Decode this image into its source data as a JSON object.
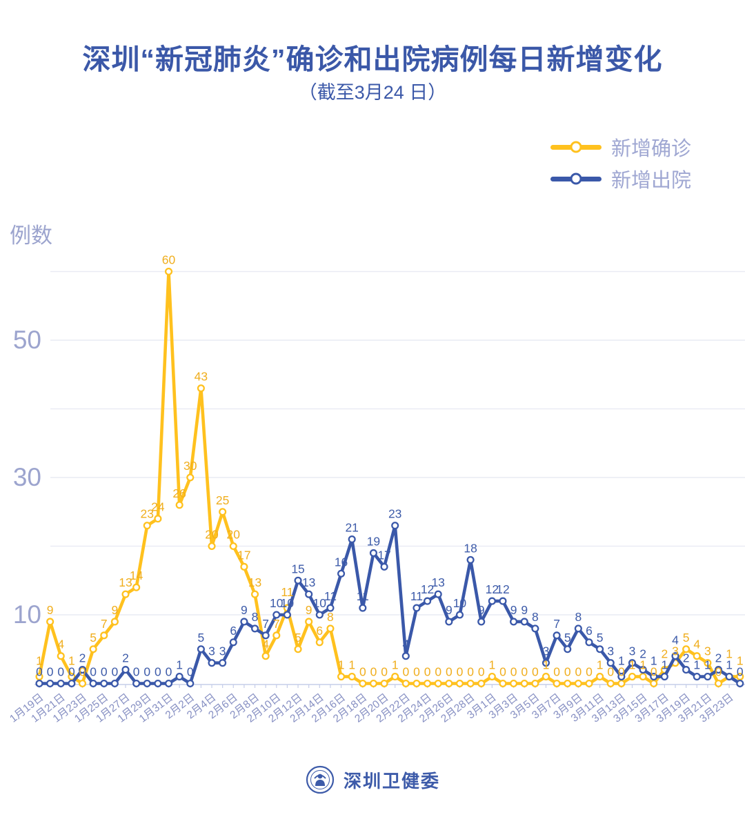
{
  "title": "深圳“新冠肺炎”确诊和出院病例每日新增变化",
  "subtitle": "（截至3月24 日）",
  "legend": {
    "items": [
      {
        "label": "新增确诊",
        "color": "#ffc11e"
      },
      {
        "label": "新增出院",
        "color": "#3a58a9"
      }
    ]
  },
  "y_axis": {
    "unit_label": "例数",
    "ticks": [
      10,
      30,
      50
    ]
  },
  "footer": {
    "org_name": "深圳卫健委",
    "logo": "round-seal-logo"
  },
  "chart_data": {
    "type": "line",
    "title": "深圳“新冠肺炎”确诊和出院病例每日新增变化",
    "subtitle": "（截至3月24 日）",
    "x_range": "1月19日 — 3月24日 (66 daily points, tick label every 2nd day)",
    "x_tick_labels": [
      "1月19日",
      "1月21日",
      "1月23日",
      "1月25日",
      "1月27日",
      "1月29日",
      "1月31日",
      "2月2日",
      "2月4日",
      "2月6日",
      "2月8日",
      "2月10日",
      "2月12日",
      "2月14日",
      "2月16日",
      "2月18日",
      "2月20日",
      "2月22日",
      "2月24日",
      "2月26日",
      "2月28日",
      "3月1日",
      "3月3日",
      "3月5日",
      "3月7日",
      "3月9日",
      "3月11日",
      "3月13日",
      "3月15日",
      "3月17日",
      "3月19日",
      "3月21日",
      "3月23日"
    ],
    "ylabel": "例数",
    "ylim": [
      0,
      62
    ],
    "y_tick_labels": [
      10,
      30,
      50
    ],
    "gridlines": [
      10,
      20,
      30,
      40,
      50,
      60
    ],
    "grid": true,
    "legend_position": "top-right",
    "point_labels_shown": true,
    "series": [
      {
        "name": "新增确诊",
        "color": "#ffc11e",
        "label_color": "#f0ae1e",
        "values": [
          1,
          9,
          4,
          1,
          0,
          5,
          7,
          9,
          13,
          14,
          23,
          24,
          60,
          26,
          30,
          43,
          20,
          25,
          20,
          17,
          13,
          4,
          7,
          11,
          5,
          9,
          6,
          8,
          1,
          1,
          0,
          0,
          0,
          1,
          0,
          0,
          0,
          0,
          0,
          0,
          0,
          0,
          1,
          0,
          0,
          0,
          0,
          1,
          0,
          0,
          0,
          0,
          1,
          0,
          0,
          1,
          1,
          0,
          2,
          3,
          5,
          4,
          3,
          0,
          1,
          1
        ]
      },
      {
        "name": "新增出院",
        "color": "#3a58a9",
        "label_color": "#3d5ba9",
        "values": [
          0,
          0,
          0,
          0,
          2,
          0,
          0,
          0,
          2,
          0,
          0,
          0,
          0,
          1,
          0,
          5,
          3,
          3,
          6,
          9,
          8,
          7,
          10,
          10,
          15,
          13,
          10,
          11,
          16,
          21,
          11,
          19,
          17,
          23,
          4,
          11,
          12,
          13,
          9,
          10,
          18,
          9,
          12,
          12,
          9,
          9,
          8,
          3,
          7,
          5,
          8,
          6,
          5,
          3,
          1,
          3,
          2,
          1,
          1,
          4,
          2,
          1,
          1,
          2,
          1,
          0
        ]
      }
    ]
  },
  "colors": {
    "title": "#3b58a8",
    "axis_text": "#9ca4ce",
    "x_tick_text": "#8790c3",
    "gridline": "#e9ebf4",
    "axis_line": "#c5cde9"
  }
}
